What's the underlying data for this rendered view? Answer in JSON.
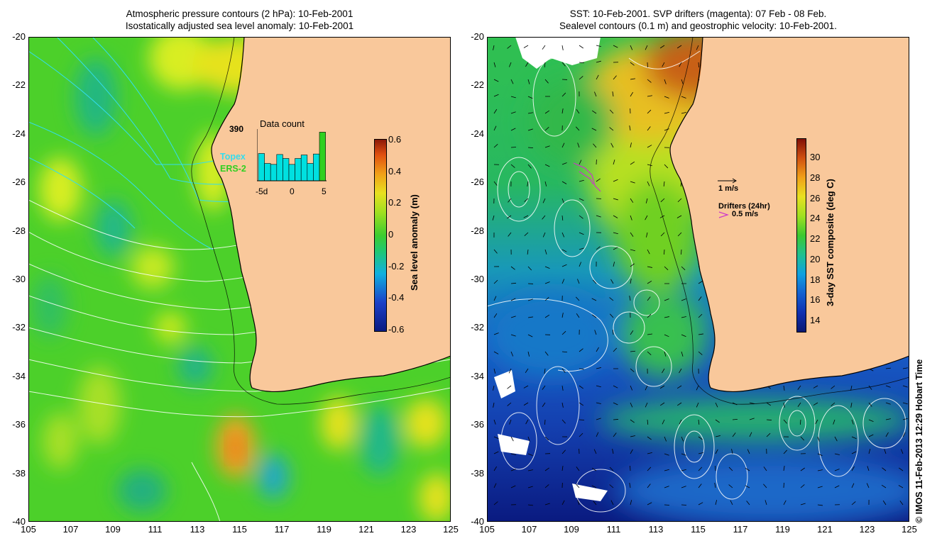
{
  "left_panel": {
    "title_line1": "Atmospheric pressure contours (2 hPa): 10-Feb-2001",
    "title_line2": "Isostatically adjusted sea level anomaly: 10-Feb-2001",
    "y_ticks": [
      "-20",
      "-22",
      "-24",
      "-26",
      "-28",
      "-30",
      "-32",
      "-34",
      "-36",
      "-38",
      "-40"
    ],
    "x_ticks": [
      "105",
      "107",
      "109",
      "111",
      "113",
      "115",
      "117",
      "119",
      "121",
      "123",
      "125"
    ],
    "colorbar": {
      "label": "Sea level anomaly (m)",
      "ticks": [
        "0.6",
        "0.4",
        "0.2",
        "0",
        "-0.2",
        "-0.4",
        "-0.6"
      ],
      "range": [
        -0.6,
        0.6
      ]
    },
    "inset": {
      "title": "Data count",
      "max_label": "390",
      "x_labels": [
        "-5d",
        "0",
        "5"
      ],
      "bar_values": [
        0.55,
        0.35,
        0.33,
        0.53,
        0.45,
        0.33,
        0.45,
        0.52,
        0.35,
        0.54,
        0.98
      ],
      "series": [
        {
          "name": "Topex",
          "color": "#00e0e0"
        },
        {
          "name": "ERS-2",
          "color": "#30d020"
        }
      ]
    }
  },
  "right_panel": {
    "title_line1": "SST: 10-Feb-2001. SVP drifters (magenta): 07 Feb - 08 Feb.",
    "title_line2": "Sealevel contours (0.1 m) and geostrophic velocity: 10-Feb-2001.",
    "y_ticks": [
      "-20",
      "-22",
      "-24",
      "-26",
      "-28",
      "-30",
      "-32",
      "-34",
      "-36",
      "-38",
      "-40"
    ],
    "x_ticks": [
      "105",
      "107",
      "109",
      "111",
      "113",
      "115",
      "117",
      "119",
      "121",
      "123",
      "125"
    ],
    "colorbar": {
      "label": "3-day SST composite (deg C)",
      "ticks": [
        "30",
        "28",
        "26",
        "24",
        "22",
        "20",
        "18",
        "16",
        "14"
      ],
      "range": [
        13,
        32
      ]
    },
    "velocity_legend": "1 m/s",
    "drifter_legend_title": "Drifters (24hr)",
    "drifter_legend_value": "0.5 m/s"
  },
  "copyright": "© IMOS 11-Feb-2013 12:29 Hobart Time",
  "colors": {
    "land": "#f9c89b",
    "drifter": "#cc33cc"
  }
}
